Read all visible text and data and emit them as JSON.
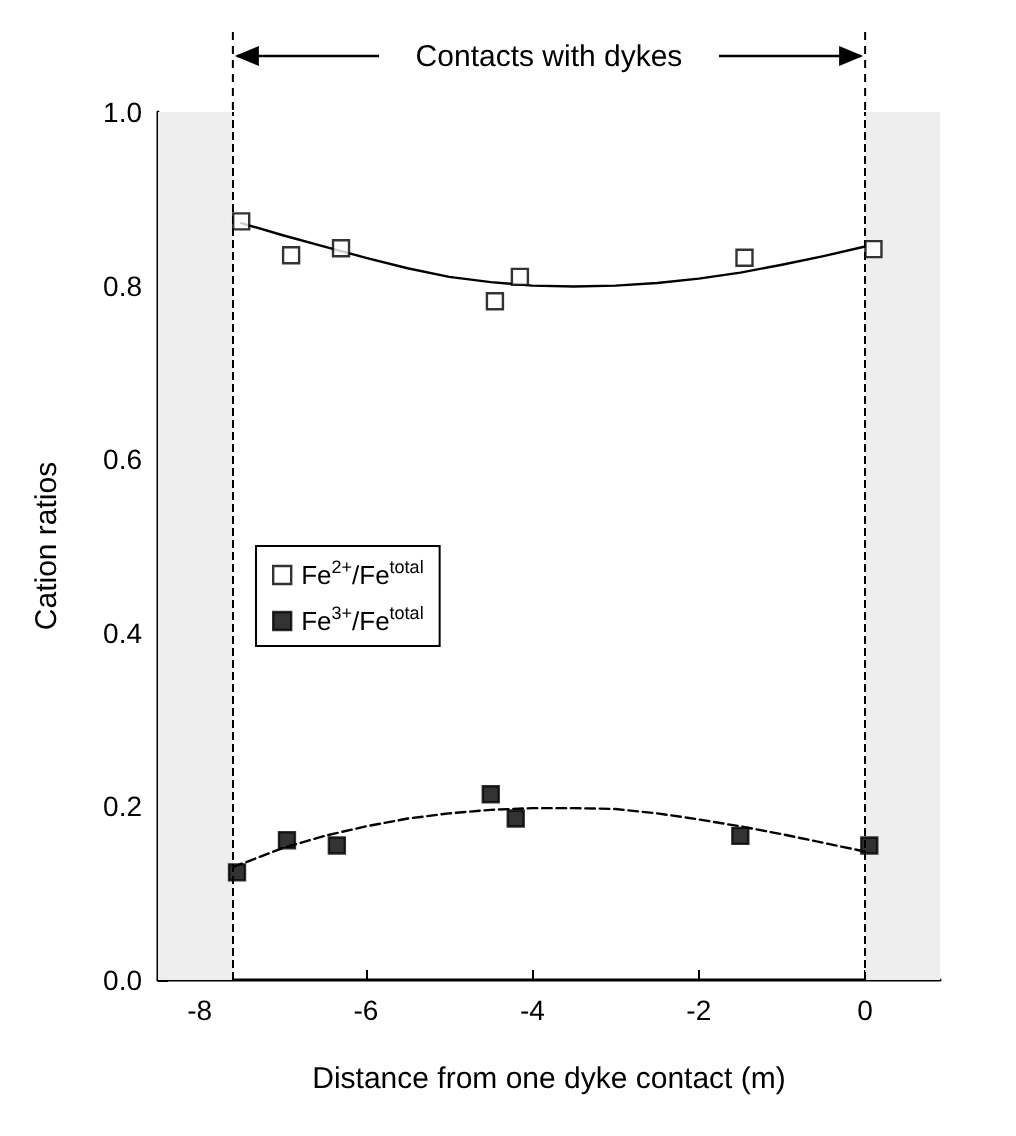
{
  "chart_data": {
    "type": "scatter",
    "xlabel": "Distance from one dyke contact (m)",
    "ylabel": "Cation ratios",
    "annotations": [
      "Contacts with dykes"
    ],
    "series": [
      {
        "name": "Fe$^{2+}$/Fe$^{total}$",
        "color": "#ffffff",
        "x": [
          -7.5,
          -6.9,
          -6.3,
          -4.45,
          -4.15,
          -1.45,
          0.1
        ],
        "values": [
          0.874,
          0.835,
          0.843,
          0.782,
          0.81,
          0.832,
          0.842
        ]
      },
      {
        "name": "Fe$^{3+}$/Fe$^{total}$",
        "color": "#000000",
        "x": [
          -7.55,
          -6.95,
          -6.35,
          -4.5,
          -4.2,
          -1.5,
          0.05
        ],
        "values": [
          0.124,
          0.161,
          0.155,
          0.214,
          0.186,
          0.166,
          0.155
        ]
      },
      {
        "type": "line",
        "color": "#000000",
        "line_style": "solid",
        "marker": "none",
        "x": [
          -7.5,
          -7,
          -6.5,
          -6,
          -5.5,
          -5,
          -4.5,
          -4,
          -3.5,
          -3,
          -2.5,
          -2,
          -1.5,
          -1,
          -0.5,
          0
        ],
        "values": [
          0.872,
          0.858,
          0.845,
          0.832,
          0.82,
          0.81,
          0.804,
          0.8,
          0.799,
          0.8,
          0.803,
          0.808,
          0.815,
          0.824,
          0.834,
          0.845
        ]
      },
      {
        "type": "line",
        "color": "#000000",
        "line_style": "dashed",
        "marker": "none",
        "x": [
          -7.6,
          -7,
          -6.5,
          -6,
          -5.5,
          -5,
          -4.5,
          -4,
          -3.5,
          -3,
          -2.5,
          -2,
          -1.5,
          -1,
          -0.5,
          0
        ],
        "values": [
          0.13,
          0.152,
          0.166,
          0.177,
          0.186,
          0.192,
          0.196,
          0.198,
          0.198,
          0.197,
          0.192,
          0.185,
          0.177,
          0.168,
          0.158,
          0.148
        ]
      }
    ],
    "xlim": [
      -8.5,
      0.9
    ],
    "xticks": [
      -8,
      -6,
      -4,
      -2,
      0
    ],
    "ylim": [
      0,
      1
    ],
    "yticks": [
      {
        "value": 0,
        "label": "0.0"
      },
      0.2,
      0.4,
      0.6,
      0.8,
      {
        "value": 1,
        "label": "1.0"
      }
    ],
    "ref_lines": [
      {
        "axis": "x",
        "value": -7.6,
        "line_style": "dashed"
      },
      {
        "axis": "x",
        "value": 0,
        "line_style": "dashed"
      }
    ],
    "bands": [
      {
        "axis": "x",
        "from": -8.5,
        "to": -7.6,
        "color": "#eeeeee"
      },
      {
        "axis": "x",
        "from": 0,
        "to": 0.9,
        "color": "#eeeeee"
      }
    ],
    "marker": "square",
    "grid": false,
    "legend": "left"
  }
}
